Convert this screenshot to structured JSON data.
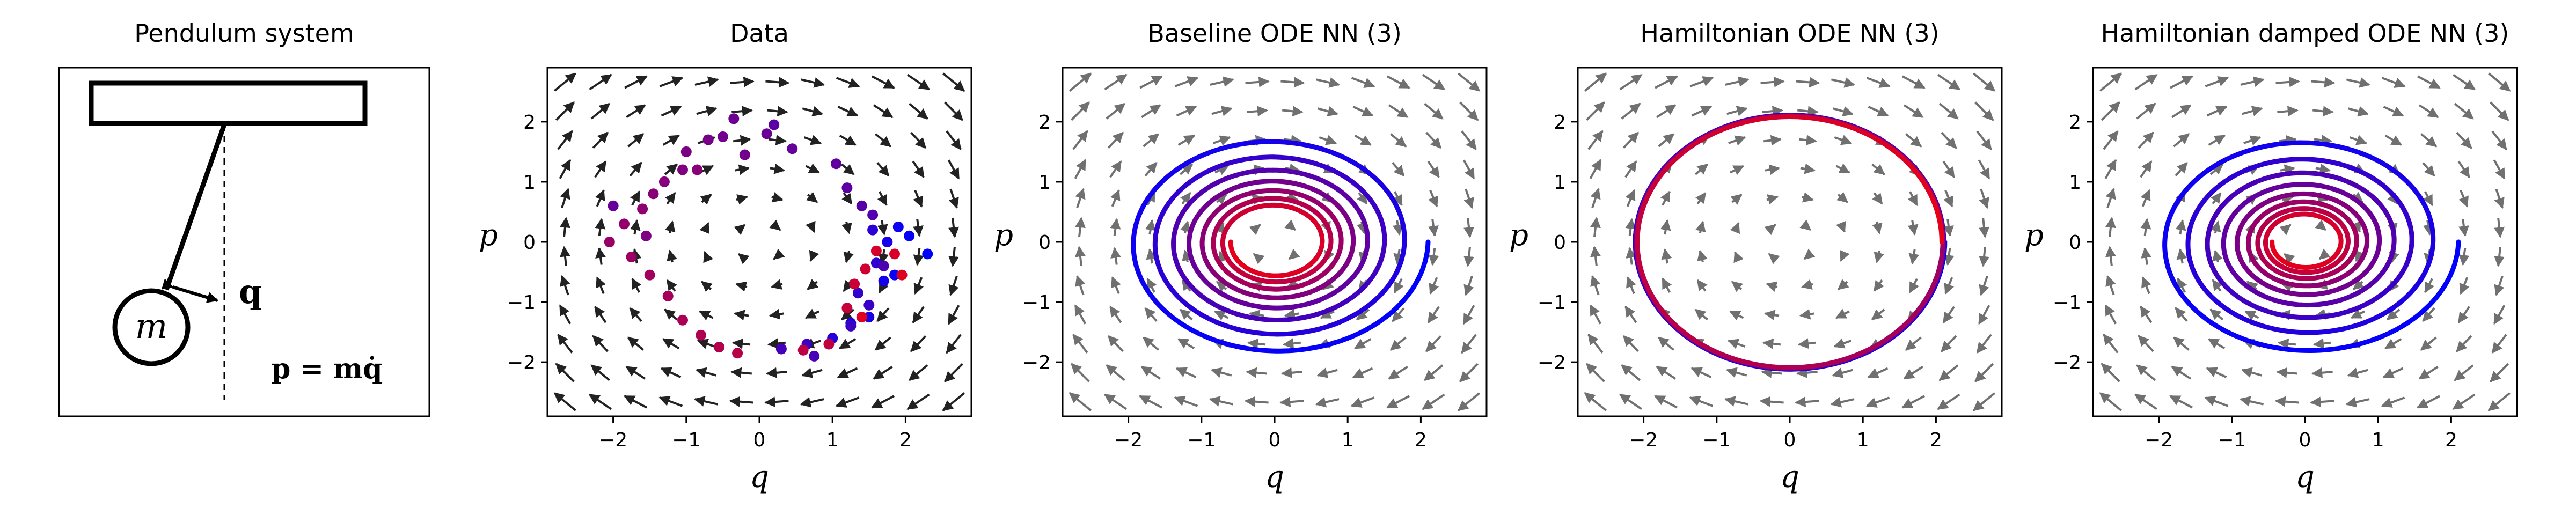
{
  "colors": {
    "start": "#0000ff",
    "end": "#e6001a",
    "field_dark": "#222222",
    "field_gray": "#707070"
  },
  "chart_data": [
    {
      "type": "diagram",
      "title": "Pendulum system",
      "labels": {
        "mass": "m",
        "coord": "q",
        "momentum_eq": "p = mq̇"
      }
    },
    {
      "type": "scatter",
      "title": "Data",
      "xlabel": "q",
      "ylabel": "p",
      "xlim": [
        -2.9,
        2.9
      ],
      "ylim": [
        -2.9,
        2.9
      ],
      "xticks": [
        -2,
        -1,
        0,
        1,
        2
      ],
      "yticks": [
        -2,
        -1,
        0,
        1,
        2
      ],
      "vector_field": "rotation",
      "points": [
        [
          2.3,
          -0.2,
          0
        ],
        [
          2.05,
          0.1,
          0.02
        ],
        [
          1.85,
          -0.55,
          0.04
        ],
        [
          1.9,
          0.25,
          0.06
        ],
        [
          1.7,
          -0.65,
          0.08
        ],
        [
          1.75,
          0.0,
          0.1
        ],
        [
          1.5,
          -1.25,
          0.12
        ],
        [
          1.25,
          -1.35,
          0.14
        ],
        [
          1.0,
          -1.6,
          0.16
        ],
        [
          1.55,
          0.2,
          0.18
        ],
        [
          1.6,
          -0.35,
          0.2
        ],
        [
          1.35,
          -0.85,
          0.22
        ],
        [
          1.5,
          -1.05,
          0.24
        ],
        [
          1.25,
          -1.4,
          0.26
        ],
        [
          0.65,
          -1.7,
          0.28
        ],
        [
          0.3,
          -1.78,
          0.3
        ],
        [
          0.75,
          -1.9,
          0.32
        ],
        [
          1.7,
          -0.4,
          0.34
        ],
        [
          1.55,
          0.45,
          0.36
        ],
        [
          1.4,
          0.6,
          0.38
        ],
        [
          1.2,
          0.9,
          0.4
        ],
        [
          1.05,
          1.3,
          0.42
        ],
        [
          0.45,
          1.55,
          0.44
        ],
        [
          0.1,
          1.8,
          0.46
        ],
        [
          -0.35,
          2.05,
          0.48
        ],
        [
          -0.5,
          1.75,
          0.5
        ],
        [
          -0.7,
          1.7,
          0.52
        ],
        [
          -1.0,
          1.5,
          0.54
        ],
        [
          -1.05,
          1.2,
          0.56
        ],
        [
          -1.3,
          1.0,
          0.58
        ],
        [
          -1.45,
          0.8,
          0.6
        ],
        [
          -1.6,
          0.55,
          0.62
        ],
        [
          -1.85,
          0.3,
          0.64
        ],
        [
          -2.05,
          0.0,
          0.66
        ],
        [
          -1.75,
          -0.25,
          0.68
        ],
        [
          -1.5,
          -0.55,
          0.7
        ],
        [
          -1.25,
          -0.9,
          0.72
        ],
        [
          -1.05,
          -1.3,
          0.74
        ],
        [
          -0.8,
          -1.55,
          0.76
        ],
        [
          -0.55,
          -1.75,
          0.78
        ],
        [
          -0.3,
          -1.85,
          0.8
        ],
        [
          0.6,
          -1.8,
          0.82
        ],
        [
          0.95,
          -1.7,
          0.84
        ],
        [
          1.2,
          -1.1,
          0.86
        ],
        [
          1.3,
          -0.7,
          0.88
        ],
        [
          1.45,
          -0.45,
          0.9
        ],
        [
          1.6,
          -0.15,
          0.92
        ],
        [
          1.85,
          -0.2,
          0.94
        ],
        [
          1.95,
          -0.55,
          0.96
        ],
        [
          1.4,
          -1.25,
          0.98
        ],
        [
          -0.2,
          1.45,
          0.5
        ],
        [
          -0.85,
          1.2,
          0.6
        ],
        [
          -1.55,
          0.1,
          0.55
        ],
        [
          -2.0,
          0.6,
          0.45
        ],
        [
          0.2,
          1.95,
          0.4
        ]
      ]
    },
    {
      "type": "line",
      "title": "Baseline ODE NN (3)",
      "xlabel": "q",
      "ylabel": "p",
      "xlim": [
        -2.9,
        2.9
      ],
      "ylim": [
        -2.9,
        2.9
      ],
      "xticks": [
        -2,
        -1,
        0,
        1,
        2
      ],
      "yticks": [
        -2,
        -1,
        0,
        1,
        2
      ],
      "vector_field": "rotation",
      "trajectory": {
        "start": [
          2.1,
          0.0
        ],
        "r0": 2.1,
        "r1": 0.6,
        "turns": 7.5,
        "rtype": "exp",
        "xscale": 1.0,
        "yscale": 0.9
      }
    },
    {
      "type": "line",
      "title": "Hamiltonian ODE NN (3)",
      "xlabel": "q",
      "ylabel": "p",
      "xlim": [
        -2.9,
        2.9
      ],
      "ylim": [
        -2.9,
        2.9
      ],
      "xticks": [
        -2,
        -1,
        0,
        1,
        2
      ],
      "yticks": [
        -2,
        -1,
        0,
        1,
        2
      ],
      "vector_field": "rotation",
      "trajectory": {
        "start": [
          2.1,
          0.0
        ],
        "r0": 2.12,
        "r1": 2.08,
        "turns": 3.0,
        "rtype": "lin",
        "xscale": 1.0,
        "yscale": 1.0
      }
    },
    {
      "type": "line",
      "title": "Hamiltonian damped ODE NN (3)",
      "xlabel": "q",
      "ylabel": "p",
      "xlim": [
        -2.9,
        2.9
      ],
      "ylim": [
        -2.9,
        2.9
      ],
      "xticks": [
        -2,
        -1,
        0,
        1,
        2
      ],
      "yticks": [
        -2,
        -1,
        0,
        1,
        2
      ],
      "vector_field": "rotation",
      "trajectory": {
        "start": [
          2.1,
          0.0
        ],
        "r0": 2.1,
        "r1": 0.45,
        "turns": 8.5,
        "rtype": "exp",
        "xscale": 1.0,
        "yscale": 0.9
      }
    }
  ]
}
